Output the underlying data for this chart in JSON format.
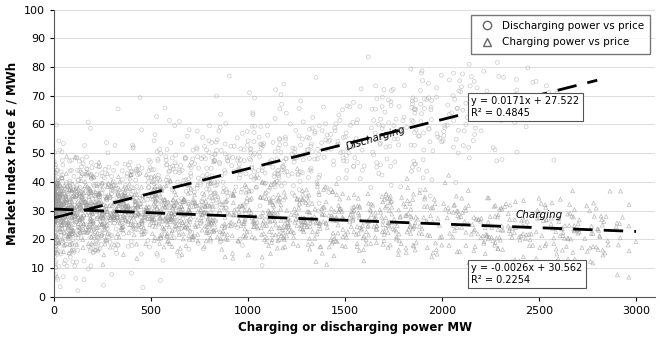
{
  "xlabel": "Charging or discharging power MW",
  "ylabel": "Market Index Price £ / MWh",
  "xlim": [
    0,
    3100
  ],
  "ylim": [
    0,
    100
  ],
  "xticks": [
    0,
    500,
    1000,
    1500,
    2000,
    2500,
    3000
  ],
  "yticks": [
    0,
    10,
    20,
    30,
    40,
    50,
    60,
    70,
    80,
    90,
    100
  ],
  "discharge_eq": "y = 0.0171x + 27.522",
  "discharge_r2": "R² = 0.4845",
  "charge_eq": "y = -0.0026x + 30.562",
  "charge_r2": "R² = 0.2254",
  "background_color": "#ffffff",
  "scatter_color_discharge": "#b0b0b0",
  "scatter_color_charge": "#999999",
  "trendline_color": "#000000",
  "seed": 42,
  "n_discharge": 1200,
  "n_charge": 1500,
  "discharge_label": "Discharging",
  "charge_label": "Charging",
  "legend_discharge": "Discharging power vs price",
  "legend_charge": "Charging power vs price"
}
